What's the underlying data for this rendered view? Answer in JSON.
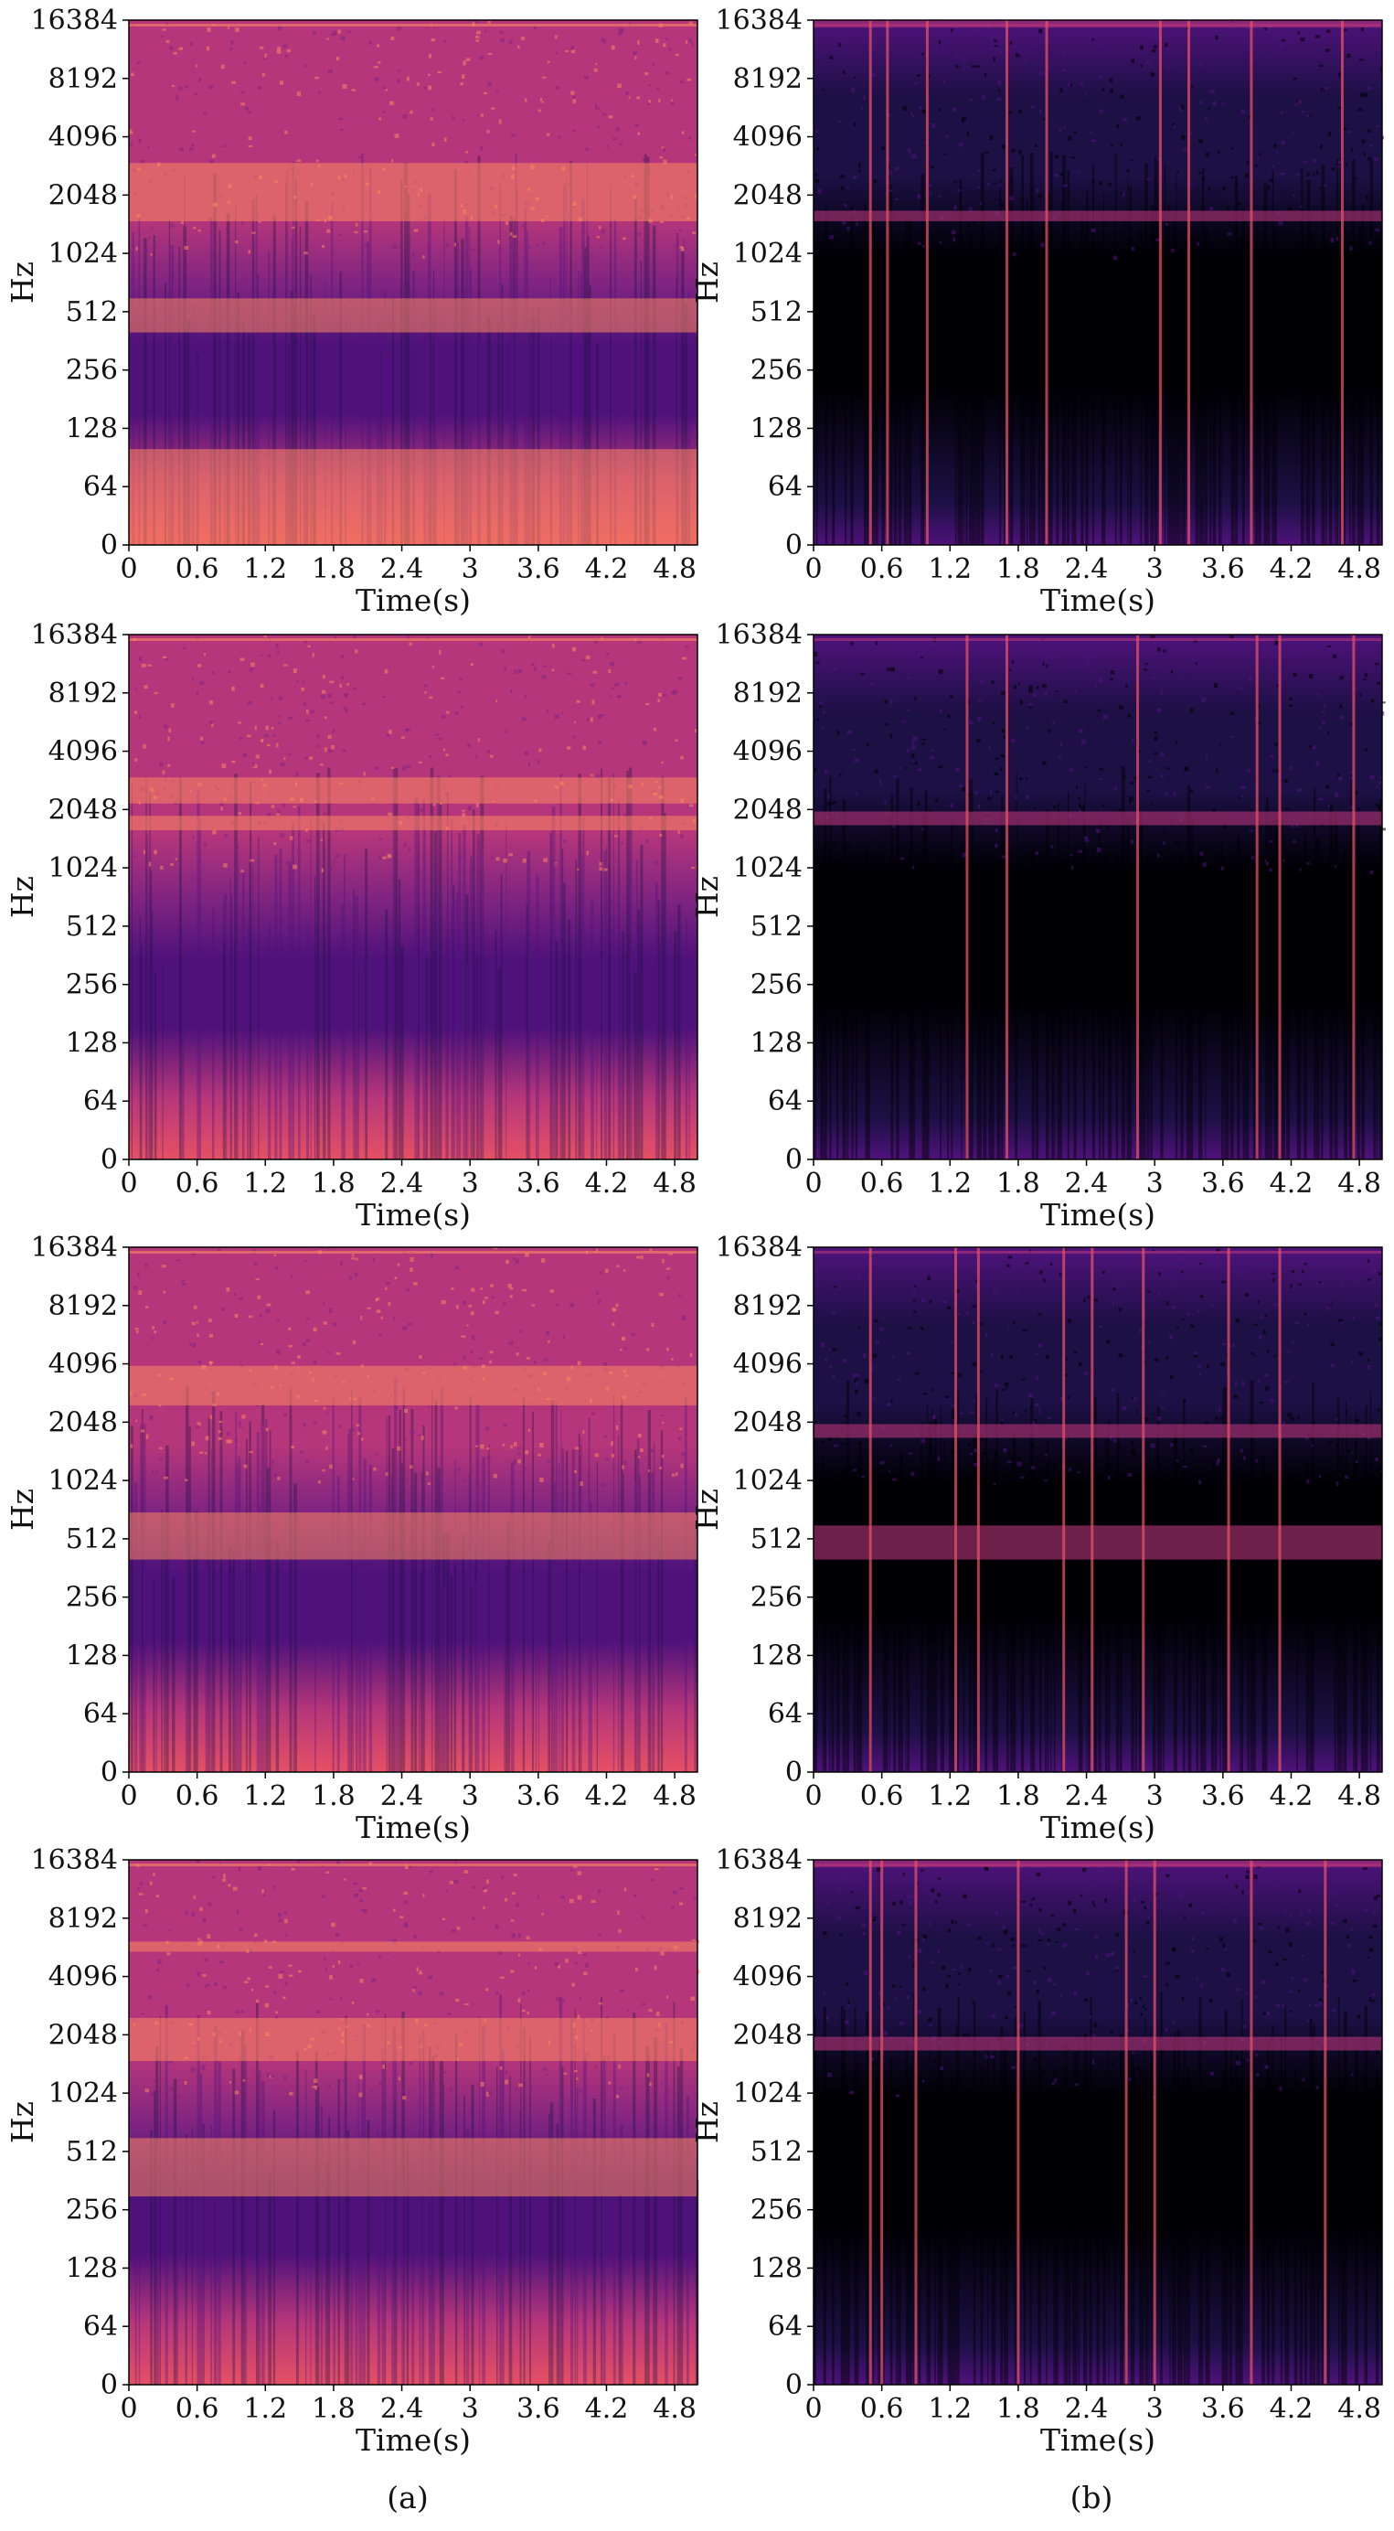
{
  "colors": {
    "magma": [
      "#000004",
      "#1c1044",
      "#4f127b",
      "#812581",
      "#b5367a",
      "#e55064",
      "#fb8761",
      "#fec287",
      "#fcfdbf"
    ]
  },
  "chart_data": [
    {
      "type": "heatmap",
      "panel": "a",
      "row": 1,
      "intensity": "high",
      "xlabel": "Time(s)",
      "ylabel": "Hz",
      "xticks": [
        "0",
        "0.6",
        "1.2",
        "1.8",
        "2.4",
        "3",
        "3.6",
        "4.2",
        "4.8"
      ],
      "yticks": [
        "0",
        "64",
        "128",
        "256",
        "512",
        "1024",
        "2048",
        "4096",
        "8192",
        "16384"
      ],
      "xlim": [
        0,
        5
      ],
      "yscale": "log2-style",
      "bright_bands_hz": [
        [
          1500,
          3000
        ],
        [
          400,
          600
        ],
        [
          0,
          100
        ]
      ]
    },
    {
      "type": "heatmap",
      "panel": "b",
      "row": 1,
      "intensity": "low",
      "xlabel": "Time(s)",
      "ylabel": "Hz",
      "xticks": [
        "0",
        "0.6",
        "1.2",
        "1.8",
        "2.4",
        "3",
        "3.6",
        "4.2",
        "4.8"
      ],
      "yticks": [
        "0",
        "64",
        "128",
        "256",
        "512",
        "1024",
        "2048",
        "4096",
        "8192",
        "16384"
      ],
      "xlim": [
        0,
        5
      ],
      "yscale": "log2-style",
      "bright_bands_hz": [
        [
          1500,
          1700
        ],
        [
          15000,
          17000
        ]
      ],
      "vertical_lines_s": [
        0.5,
        0.65,
        1.0,
        1.7,
        2.05,
        3.05,
        3.3,
        3.85,
        4.65
      ]
    },
    {
      "type": "heatmap",
      "panel": "a",
      "row": 2,
      "intensity": "high",
      "xlabel": "Time(s)",
      "ylabel": "Hz",
      "xticks": [
        "0",
        "0.6",
        "1.2",
        "1.8",
        "2.4",
        "3",
        "3.6",
        "4.2",
        "4.8"
      ],
      "yticks": [
        "0",
        "64",
        "128",
        "256",
        "512",
        "1024",
        "2048",
        "4096",
        "8192",
        "16384"
      ],
      "xlim": [
        0,
        5
      ],
      "yscale": "log2-style",
      "bright_bands_hz": [
        [
          2200,
          3000
        ],
        [
          1600,
          1900
        ]
      ]
    },
    {
      "type": "heatmap",
      "panel": "b",
      "row": 2,
      "intensity": "low",
      "xlabel": "Time(s)",
      "ylabel": "Hz",
      "xticks": [
        "0",
        "0.6",
        "1.2",
        "1.8",
        "2.4",
        "3",
        "3.6",
        "4.2",
        "4.8"
      ],
      "yticks": [
        "0",
        "64",
        "128",
        "256",
        "512",
        "1024",
        "2048",
        "4096",
        "8192",
        "16384"
      ],
      "xlim": [
        0,
        5
      ],
      "yscale": "log2-style",
      "bright_bands_hz": [
        [
          1700,
          2000
        ]
      ],
      "vertical_lines_s": [
        1.35,
        1.7,
        2.85,
        3.9,
        4.1,
        4.75
      ]
    },
    {
      "type": "heatmap",
      "panel": "a",
      "row": 3,
      "intensity": "high",
      "xlabel": "Time(s)",
      "ylabel": "Hz",
      "xticks": [
        "0",
        "0.6",
        "1.2",
        "1.8",
        "2.4",
        "3",
        "3.6",
        "4.2",
        "4.8"
      ],
      "yticks": [
        "0",
        "64",
        "128",
        "256",
        "512",
        "1024",
        "2048",
        "4096",
        "8192",
        "16384"
      ],
      "xlim": [
        0,
        5
      ],
      "yscale": "log2-style",
      "bright_bands_hz": [
        [
          400,
          700
        ],
        [
          2500,
          4000
        ]
      ]
    },
    {
      "type": "heatmap",
      "panel": "b",
      "row": 3,
      "intensity": "low",
      "xlabel": "Time(s)",
      "ylabel": "Hz",
      "xticks": [
        "0",
        "0.6",
        "1.2",
        "1.8",
        "2.4",
        "3",
        "3.6",
        "4.2",
        "4.8"
      ],
      "yticks": [
        "0",
        "64",
        "128",
        "256",
        "512",
        "1024",
        "2048",
        "4096",
        "8192",
        "16384"
      ],
      "xlim": [
        0,
        5
      ],
      "yscale": "log2-style",
      "bright_bands_hz": [
        [
          1700,
          2000
        ],
        [
          400,
          600
        ]
      ],
      "vertical_lines_s": [
        0.5,
        1.25,
        1.45,
        2.2,
        2.45,
        2.9,
        3.65,
        4.1
      ]
    },
    {
      "type": "heatmap",
      "panel": "a",
      "row": 4,
      "intensity": "high",
      "xlabel": "Time(s)",
      "ylabel": "Hz",
      "xticks": [
        "0",
        "0.6",
        "1.2",
        "1.8",
        "2.4",
        "3",
        "3.6",
        "4.2",
        "4.8"
      ],
      "yticks": [
        "0",
        "64",
        "128",
        "256",
        "512",
        "1024",
        "2048",
        "4096",
        "8192",
        "16384"
      ],
      "xlim": [
        0,
        5
      ],
      "yscale": "log2-style",
      "bright_bands_hz": [
        [
          5500,
          6200
        ],
        [
          1500,
          2500
        ],
        [
          300,
          600
        ]
      ]
    },
    {
      "type": "heatmap",
      "panel": "b",
      "row": 4,
      "intensity": "low",
      "xlabel": "Time(s)",
      "ylabel": "Hz",
      "xticks": [
        "0",
        "0.6",
        "1.2",
        "1.8",
        "2.4",
        "3",
        "3.6",
        "4.2",
        "4.8"
      ],
      "yticks": [
        "0",
        "64",
        "128",
        "256",
        "512",
        "1024",
        "2048",
        "4096",
        "8192",
        "16384"
      ],
      "xlim": [
        0,
        5
      ],
      "yscale": "log2-style",
      "bright_bands_hz": [
        [
          1700,
          2000
        ],
        [
          15000,
          17000
        ]
      ],
      "vertical_lines_s": [
        0.5,
        0.6,
        0.9,
        1.8,
        2.75,
        3.0,
        3.85,
        4.5
      ]
    }
  ],
  "captions": {
    "left": "(a)",
    "right": "(b)"
  }
}
